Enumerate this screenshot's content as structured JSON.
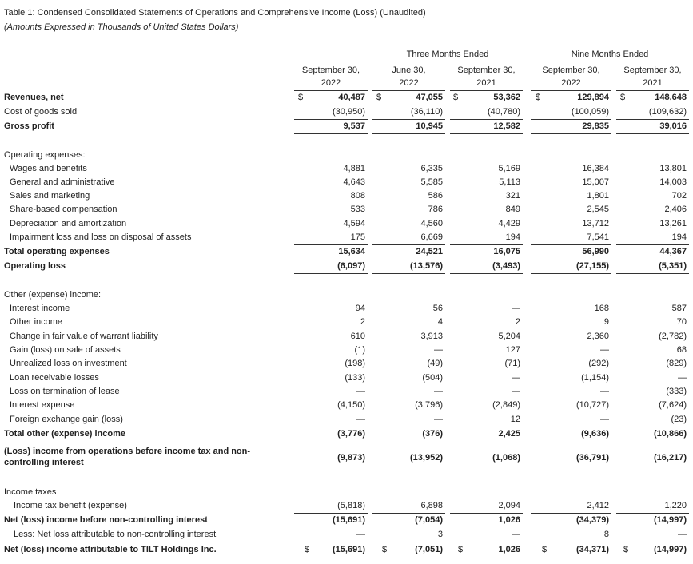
{
  "header": {
    "title": "Table 1: Condensed Consolidated Statements of Operations and Comprehensive Income (Loss) (Unaudited)",
    "subtitle": "(Amounts Expressed in Thousands of United States Dollars)"
  },
  "table": {
    "column_groups": [
      "Three Months Ended",
      "Nine Months Ended"
    ],
    "columns": [
      [
        "September 30,",
        "2022"
      ],
      [
        "June 30,",
        "2022"
      ],
      [
        "September 30,",
        "2021"
      ],
      [
        "September 30,",
        "2022"
      ],
      [
        "September 30,",
        "2021"
      ]
    ],
    "rows": [
      {
        "label": "Revenues, net",
        "currency": "$",
        "values": [
          "40,487",
          "47,055",
          "53,362",
          "129,894",
          "148,648"
        ]
      },
      {
        "label": "Cost of goods sold",
        "values": [
          "(30,950)",
          "(36,110)",
          "(40,780)",
          "(100,059)",
          "(109,632)"
        ]
      },
      {
        "label": "Gross profit",
        "values": [
          "9,537",
          "10,945",
          "12,582",
          "29,835",
          "39,016"
        ]
      },
      {
        "label": "Operating expenses:"
      },
      {
        "label": "Wages and benefits",
        "values": [
          "4,881",
          "6,335",
          "5,169",
          "16,384",
          "13,801"
        ]
      },
      {
        "label": "General and administrative",
        "values": [
          "4,643",
          "5,585",
          "5,113",
          "15,007",
          "14,003"
        ]
      },
      {
        "label": "Sales and marketing",
        "values": [
          "808",
          "586",
          "321",
          "1,801",
          "702"
        ]
      },
      {
        "label": "Share-based compensation",
        "values": [
          "533",
          "786",
          "849",
          "2,545",
          "2,406"
        ]
      },
      {
        "label": "Depreciation and amortization",
        "values": [
          "4,594",
          "4,560",
          "4,429",
          "13,712",
          "13,261"
        ]
      },
      {
        "label": "Impairment loss and loss on disposal of assets",
        "values": [
          "175",
          "6,669",
          "194",
          "7,541",
          "194"
        ]
      },
      {
        "label": "Total operating expenses",
        "values": [
          "15,634",
          "24,521",
          "16,075",
          "56,990",
          "44,367"
        ]
      },
      {
        "label": "Operating loss",
        "values": [
          "(6,097)",
          "(13,576)",
          "(3,493)",
          "(27,155)",
          "(5,351)"
        ]
      },
      {
        "label": "Other (expense) income:"
      },
      {
        "label": "Interest income",
        "values": [
          "94",
          "56",
          "—",
          "168",
          "587"
        ]
      },
      {
        "label": "Other income",
        "values": [
          "2",
          "4",
          "2",
          "9",
          "70"
        ]
      },
      {
        "label": "Change in fair value of warrant liability",
        "values": [
          "610",
          "3,913",
          "5,204",
          "2,360",
          "(2,782)"
        ]
      },
      {
        "label": "Gain (loss) on sale of assets",
        "values": [
          "(1)",
          "—",
          "127",
          "—",
          "68"
        ]
      },
      {
        "label": "Unrealized loss on investment",
        "values": [
          "(198)",
          "(49)",
          "(71)",
          "(292)",
          "(829)"
        ]
      },
      {
        "label": "Loan receivable losses",
        "values": [
          "(133)",
          "(504)",
          "—",
          "(1,154)",
          "—"
        ]
      },
      {
        "label": "Loss on termination of lease",
        "values": [
          "—",
          "—",
          "—",
          "—",
          "(333)"
        ]
      },
      {
        "label": "Interest expense",
        "values": [
          "(4,150)",
          "(3,796)",
          "(2,849)",
          "(10,727)",
          "(7,624)"
        ]
      },
      {
        "label": "Foreign exchange gain (loss)",
        "values": [
          "—",
          "—",
          "12",
          "—",
          "(23)"
        ]
      },
      {
        "label": "Total other (expense) income",
        "values": [
          "(3,776)",
          "(376)",
          "2,425",
          "(9,636)",
          "(10,866)"
        ]
      },
      {
        "label": "(Loss) income from operations before income tax and non-controlling interest",
        "values": [
          "(9,873)",
          "(13,952)",
          "(1,068)",
          "(36,791)",
          "(16,217)"
        ]
      },
      {
        "label": "Income taxes"
      },
      {
        "label": "Income tax benefit (expense)",
        "values": [
          "(5,818)",
          "6,898",
          "2,094",
          "2,412",
          "1,220"
        ]
      },
      {
        "label": "Net (loss) income before non-controlling interest",
        "values": [
          "(15,691)",
          "(7,054)",
          "1,026",
          "(34,379)",
          "(14,997)"
        ]
      },
      {
        "label": "Less: Net loss attributable to non-controlling interest",
        "values": [
          "—",
          "3",
          "—",
          "8",
          "—"
        ]
      },
      {
        "label": "Net (loss) income attributable to TILT Holdings Inc.",
        "currency": "$",
        "values": [
          "(15,691)",
          "(7,051)",
          "1,026",
          "(34,371)",
          "(14,997)"
        ]
      }
    ]
  }
}
